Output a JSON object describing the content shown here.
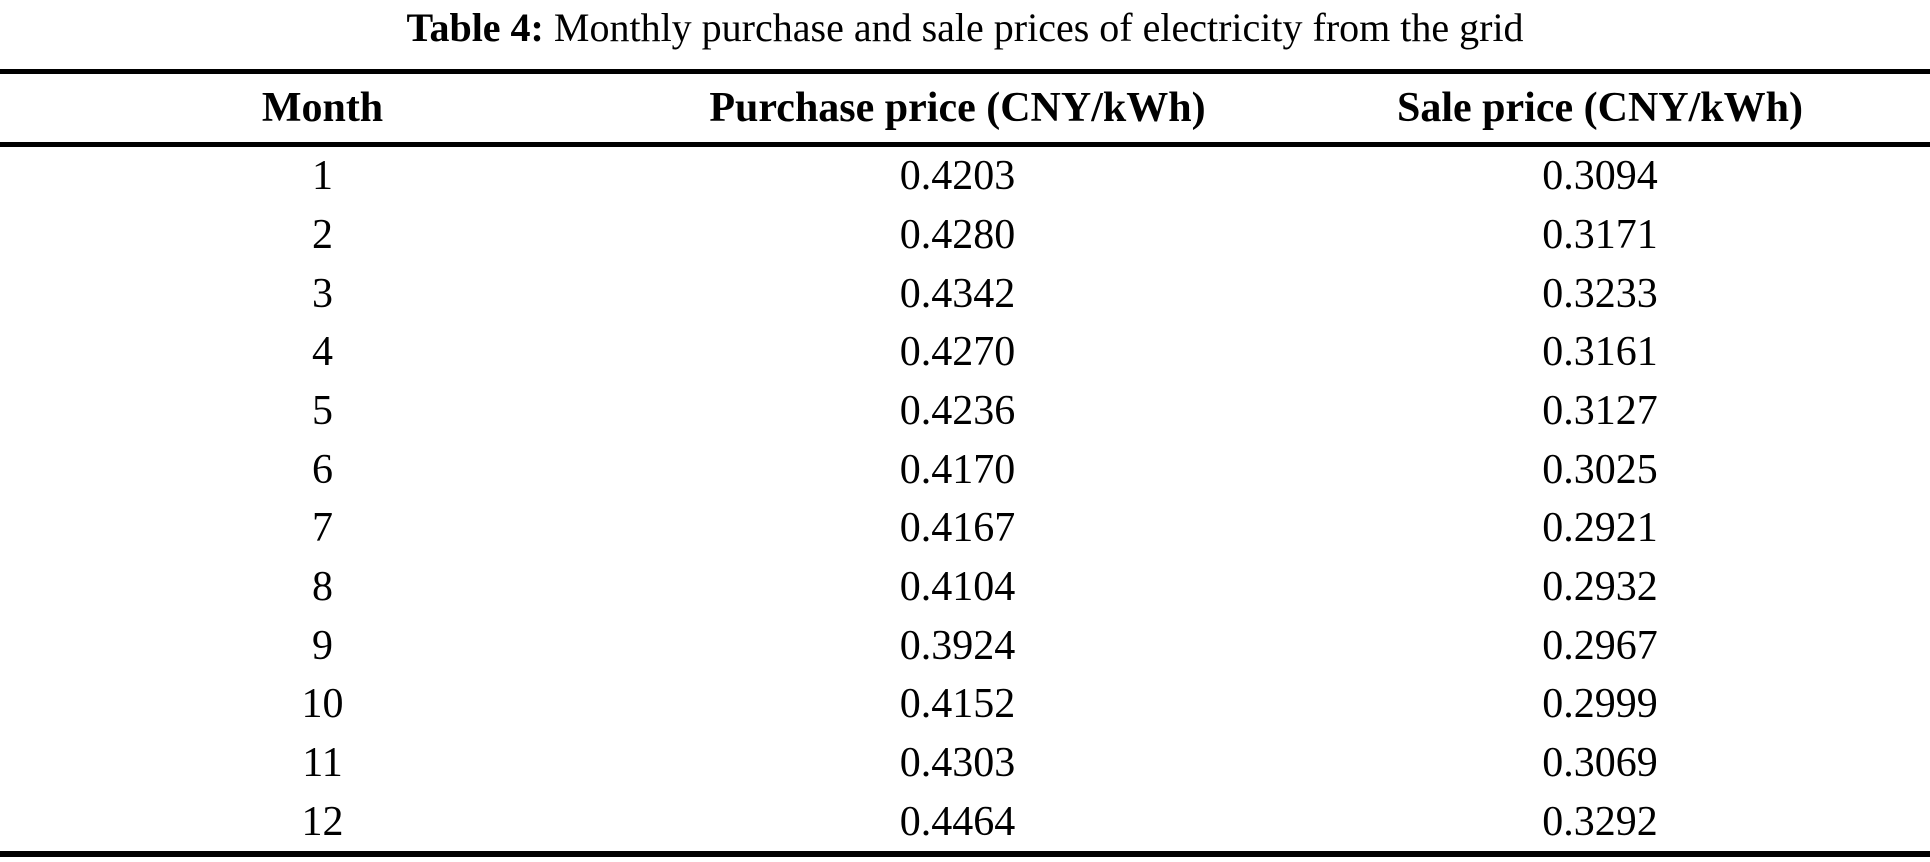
{
  "caption": {
    "label": "Table 4:",
    "text": "Monthly purchase and sale prices of electricity from the grid"
  },
  "table": {
    "columns": [
      "Month",
      "Purchase price (CNY/kWh)",
      "Sale price (CNY/kWh)"
    ],
    "rows": [
      [
        "1",
        "0.4203",
        "0.3094"
      ],
      [
        "2",
        "0.4280",
        "0.3171"
      ],
      [
        "3",
        "0.4342",
        "0.3233"
      ],
      [
        "4",
        "0.4270",
        "0.3161"
      ],
      [
        "5",
        "0.4236",
        "0.3127"
      ],
      [
        "6",
        "0.4170",
        "0.3025"
      ],
      [
        "7",
        "0.4167",
        "0.2921"
      ],
      [
        "8",
        "0.4104",
        "0.2932"
      ],
      [
        "9",
        "0.3924",
        "0.2967"
      ],
      [
        "10",
        "0.4152",
        "0.2999"
      ],
      [
        "11",
        "0.4303",
        "0.3069"
      ],
      [
        "12",
        "0.4464",
        "0.3292"
      ]
    ]
  },
  "colors": {
    "background": "#ffffff",
    "text": "#000000",
    "rule": "#000000"
  }
}
